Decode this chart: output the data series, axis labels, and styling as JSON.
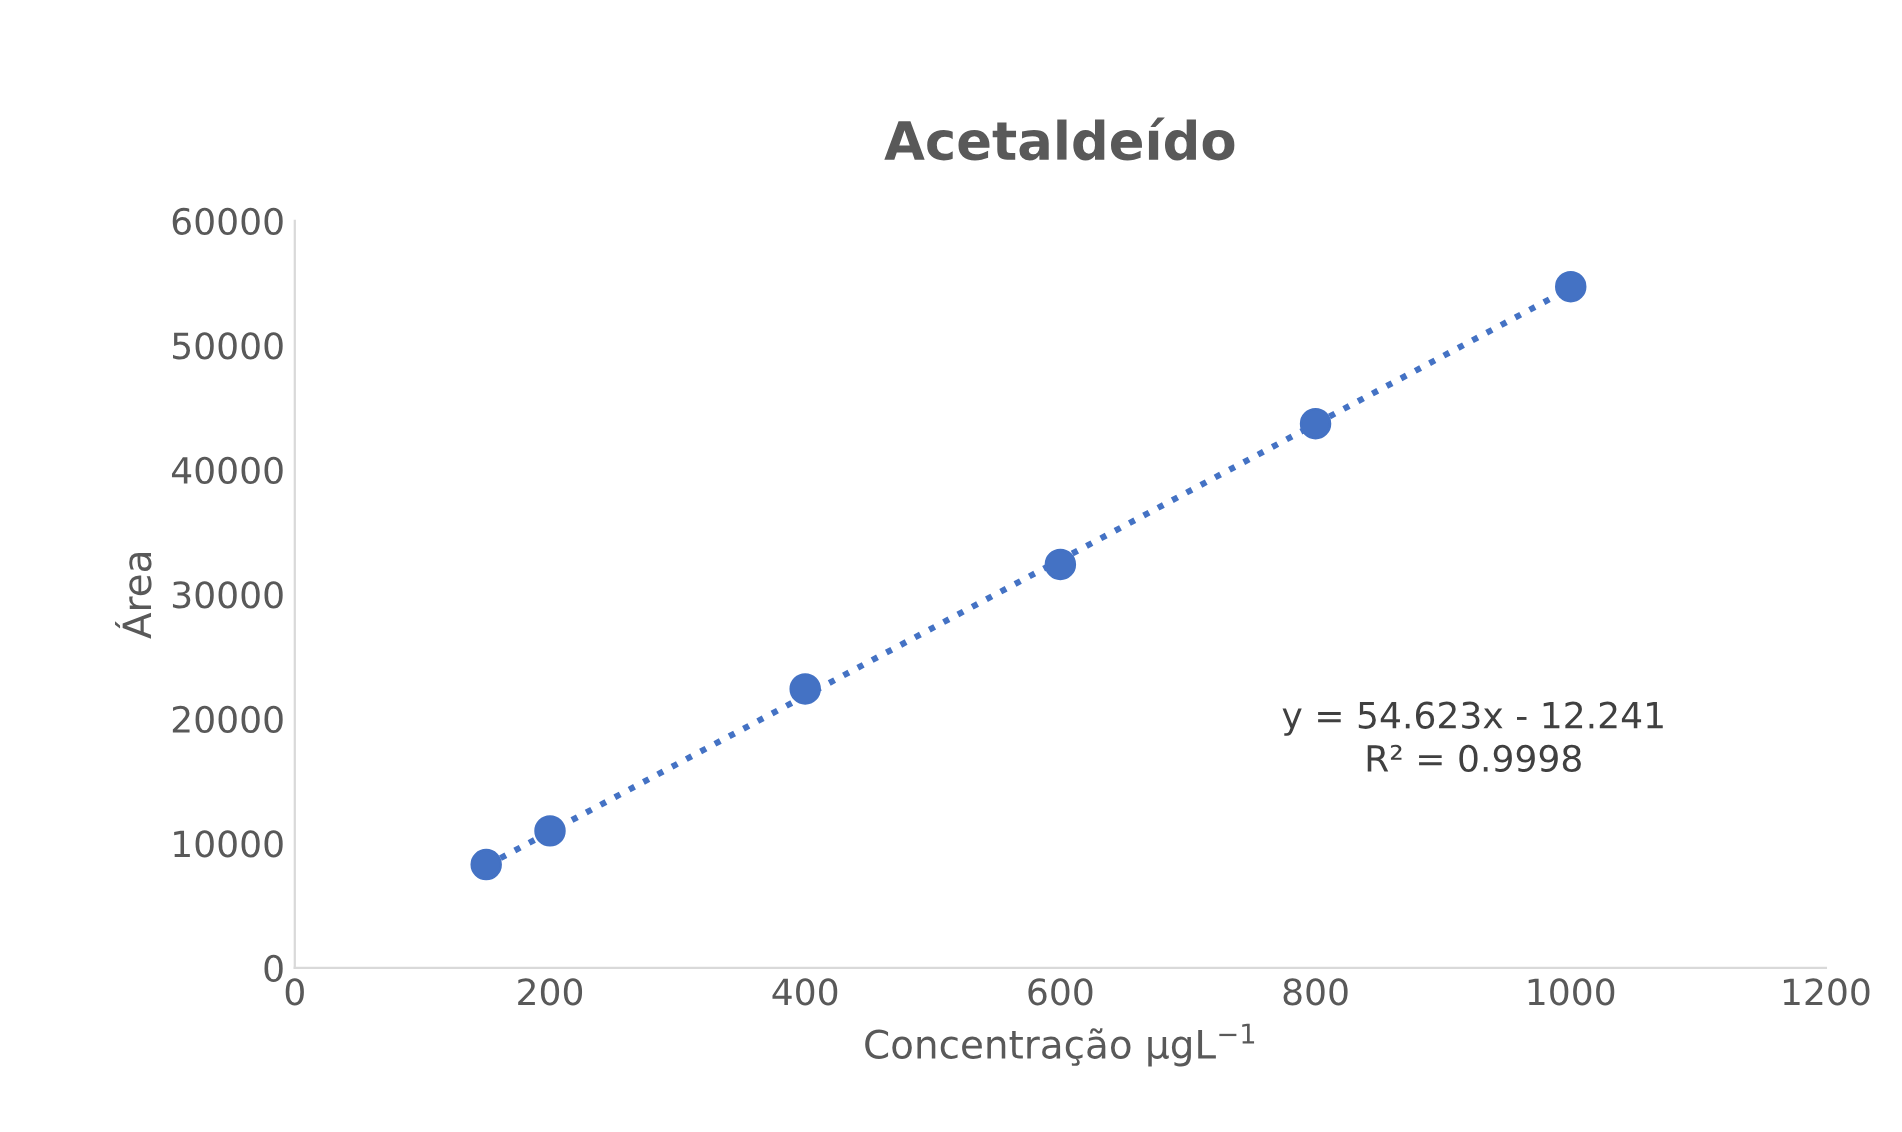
{
  "chart_data": {
    "type": "scatter",
    "title": "Acetaldeído",
    "xlabel": "Concentração μgL$^{−1}$",
    "ylabel": "Área",
    "x": [
      150,
      200,
      400,
      600,
      800,
      1000
    ],
    "series": [
      {
        "color": "#4472c4",
        "marker": "circle",
        "values": [
          8300,
          11000,
          22400,
          32400,
          43700,
          54700
        ]
      },
      {
        "type": "line",
        "color": "#4472c4",
        "line_style": "dotted",
        "x": [
          150,
          1000
        ],
        "values": [
          8200,
          54600
        ]
      }
    ],
    "annotations": [
      "y = 54.623x - 12.241",
      "R² = 0.9998"
    ],
    "xlim": [
      0,
      1200
    ],
    "xticks": [
      0,
      200,
      400,
      600,
      800,
      1000,
      1200
    ],
    "ylim": [
      0,
      60000
    ],
    "yticks": [
      0,
      10000,
      20000,
      30000,
      40000,
      50000,
      60000
    ],
    "grid": false,
    "legend": false
  }
}
